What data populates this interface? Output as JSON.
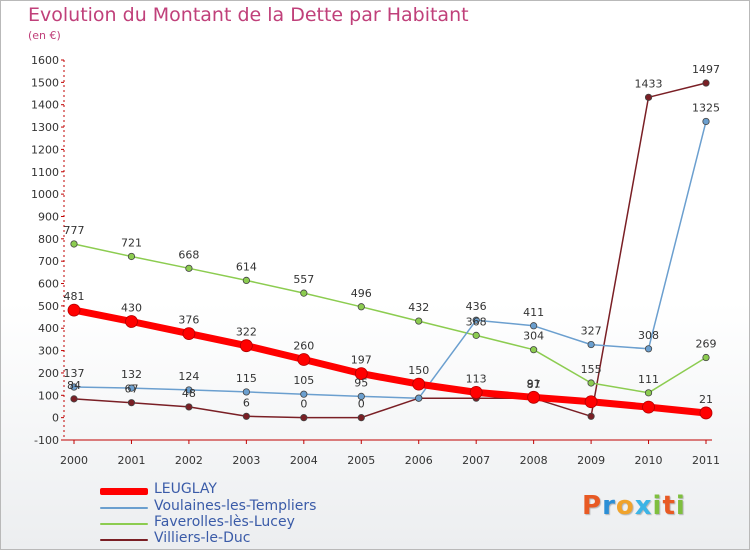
{
  "header": {
    "title": "Evolution du Montant de la Dette par Habitant",
    "subtitle": "(en €)"
  },
  "chart_data": {
    "type": "line",
    "x": [
      "2000",
      "2001",
      "2002",
      "2003",
      "2004",
      "2005",
      "2006",
      "2007",
      "2008",
      "2009",
      "2010",
      "2011"
    ],
    "ylim": [
      -100,
      1600
    ],
    "yticks": [
      -100,
      0,
      100,
      200,
      300,
      400,
      500,
      600,
      700,
      800,
      900,
      1000,
      1100,
      1200,
      1300,
      1400,
      1500,
      1600
    ],
    "grid": false,
    "legend_position": "bottom-left",
    "series": [
      {
        "name": "Villiers-le-Duc",
        "color": "#7a1f25",
        "values": [
          84,
          67,
          48,
          6,
          0,
          0,
          87,
          87,
          87,
          6,
          1433,
          1497
        ],
        "labels": [
          "84",
          "67",
          "48",
          "6",
          "0",
          "0",
          "",
          "",
          "87",
          "",
          "1433",
          "1497"
        ]
      },
      {
        "name": "Faverolles-lès-Lucey",
        "color": "#8ccc50",
        "values": [
          777,
          721,
          668,
          614,
          557,
          496,
          432,
          368,
          304,
          155,
          111,
          269
        ],
        "labels": [
          "777",
          "721",
          "668",
          "614",
          "557",
          "496",
          "432",
          "368",
          "304",
          "155",
          "111",
          "269"
        ]
      },
      {
        "name": "Voulaines-les-Templiers",
        "color": "#6b9fcf",
        "values": [
          137,
          132,
          124,
          115,
          105,
          95,
          87,
          436,
          411,
          327,
          308,
          1325
        ],
        "labels": [
          "137",
          "132",
          "124",
          "115",
          "105",
          "95",
          "",
          "436",
          "411",
          "327",
          "308",
          "1325"
        ]
      },
      {
        "name": "LEUGLAY",
        "color": "#ff0000",
        "values": [
          481,
          430,
          376,
          322,
          260,
          197,
          150,
          113,
          91,
          71,
          47,
          21
        ],
        "labels": [
          "481",
          "430",
          "376",
          "322",
          "260",
          "197",
          "150",
          "113",
          "91",
          "",
          "",
          "21"
        ]
      }
    ]
  },
  "legend": {
    "items": [
      {
        "label": "LEUGLAY",
        "color": "#ff0000"
      },
      {
        "label": "Voulaines-les-Templiers",
        "color": "#6b9fcf"
      },
      {
        "label": "Faverolles-lès-Lucey",
        "color": "#8ccc50"
      },
      {
        "label": "Villiers-le-Duc",
        "color": "#7a1f25"
      }
    ]
  },
  "logo": {
    "text": "Proxiti",
    "letters": [
      {
        "ch": "P",
        "color": "#e85a24"
      },
      {
        "ch": "r",
        "color": "#2b8fd6"
      },
      {
        "ch": "o",
        "color": "#f0a32c"
      },
      {
        "ch": "x",
        "color": "#3cb4e6"
      },
      {
        "ch": "i",
        "color": "#7fbf3f"
      },
      {
        "ch": "t",
        "color": "#e85a24"
      },
      {
        "ch": "i",
        "color": "#7fbf3f"
      }
    ]
  }
}
